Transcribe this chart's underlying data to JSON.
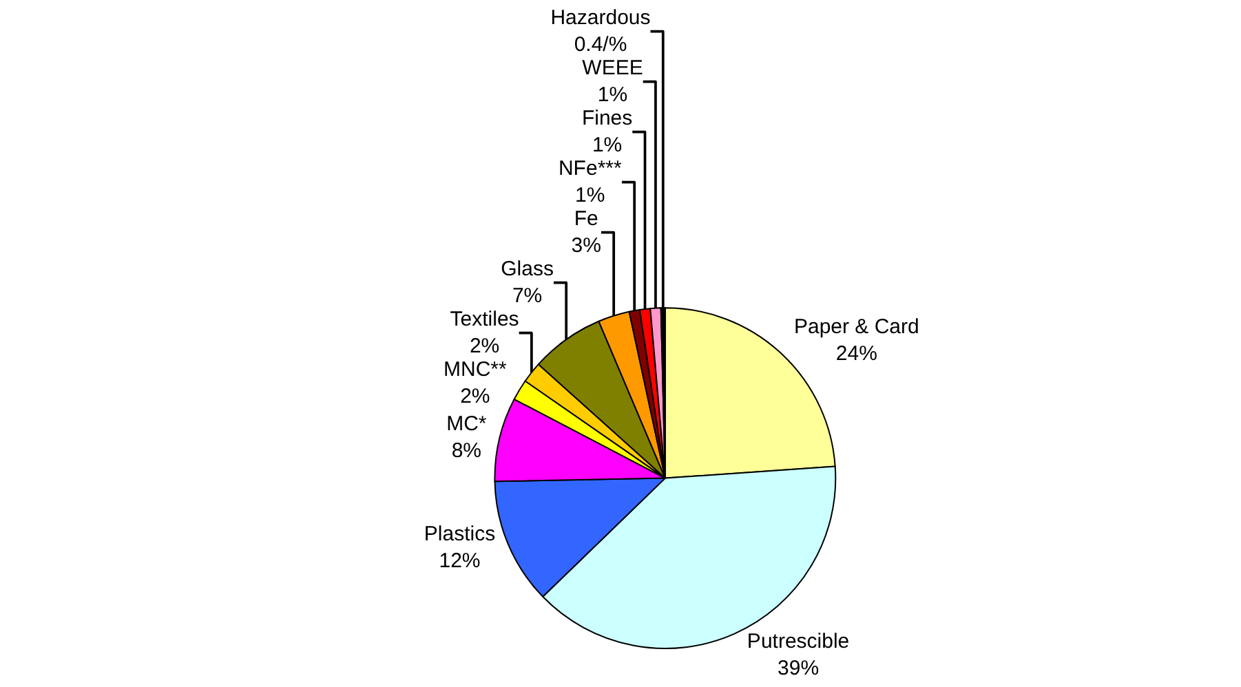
{
  "chart_data": {
    "type": "pie",
    "categories": [
      "Paper & Card",
      "Putrescible",
      "Plastics",
      "MC*",
      "MNC**",
      "Textiles",
      "Glass",
      "Fe",
      "NFe***",
      "Fines",
      "WEEE",
      "Hazardous"
    ],
    "values": [
      24,
      39,
      12,
      8,
      2,
      2,
      7,
      3,
      1,
      1,
      1,
      0.4
    ],
    "value_labels": [
      "24%",
      "39%",
      "12%",
      "8%",
      "2%",
      "2%",
      "7%",
      "3%",
      "1%",
      "1%",
      "1%",
      "0.4/%"
    ],
    "colors": [
      "#ffff99",
      "#ccffff",
      "#3366ff",
      "#ff00ff",
      "#ffff00",
      "#ffcc00",
      "#808000",
      "#ff9900",
      "#800000",
      "#ff0000",
      "#ff99cc",
      "#000000"
    ],
    "legend": false
  }
}
